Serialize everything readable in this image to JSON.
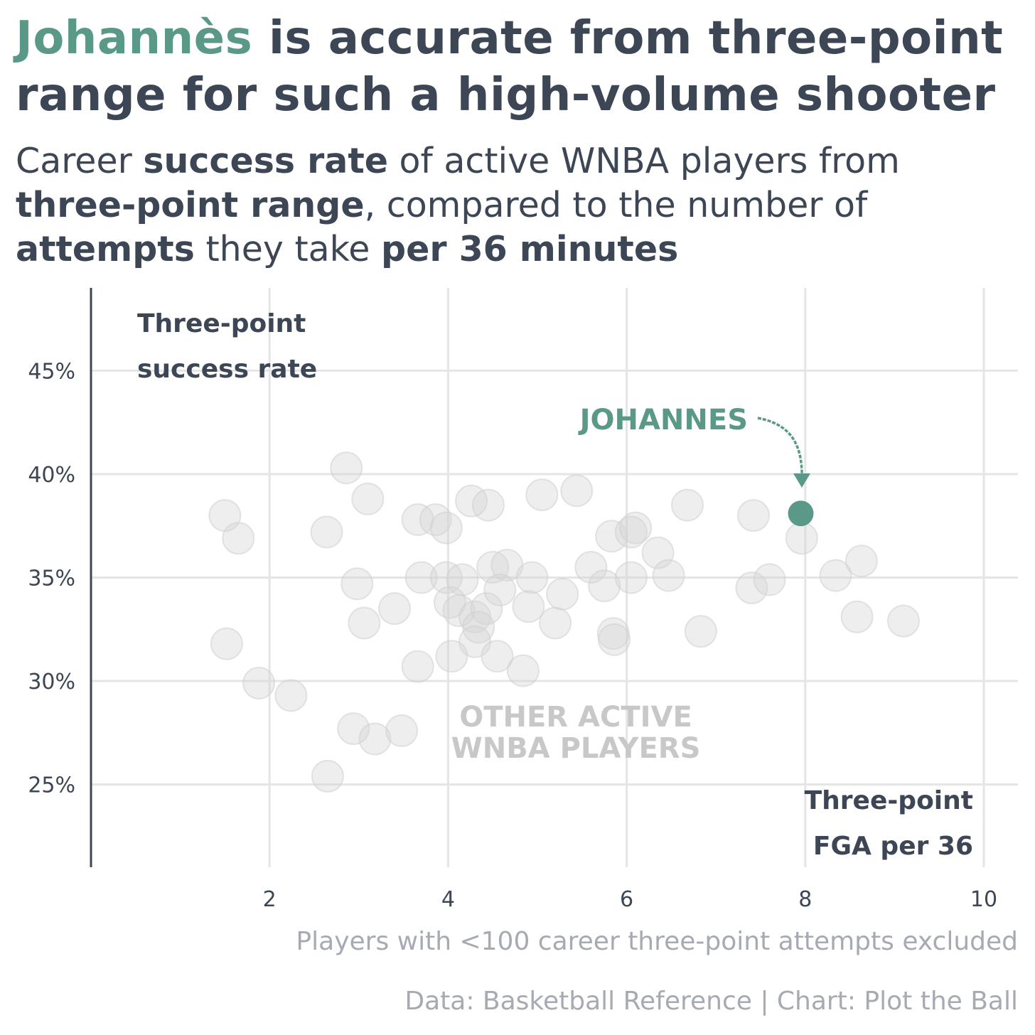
{
  "title": {
    "highlight": "Johannès",
    "rest_line1": " is accurate from three-point",
    "line2": "range for such a high-volume shooter"
  },
  "subtitle": {
    "p1": "Career ",
    "b1": "success rate",
    "p2": " of active WNBA players from ",
    "b2": "three-point range",
    "p3": ", compared to the number of ",
    "b3": "attempts",
    "p4": " they take ",
    "b4": "per 36 minutes"
  },
  "colors": {
    "highlight": "#5a9987",
    "others": "#d4d4d4",
    "text": "#3d4654",
    "grid": "#e5e5e5",
    "note": "#a6aab2"
  },
  "chart_data": {
    "type": "scatter",
    "ylabel_line1": "Three-point",
    "ylabel_line2": "success rate",
    "xlabel_line1": "Three-point",
    "xlabel_line2": "FGA per 36",
    "xlim": [
      0,
      10
    ],
    "ylim": [
      21,
      49
    ],
    "x_ticks": [
      2,
      4,
      6,
      8,
      10
    ],
    "x_tick_labels": [
      "2",
      "4",
      "6",
      "8",
      "10"
    ],
    "y_ticks": [
      25,
      30,
      35,
      40,
      45
    ],
    "y_tick_labels": [
      "25%",
      "30%",
      "35%",
      "40%",
      "45%"
    ],
    "grid": true,
    "others_label_line1": "OTHER ACTIVE",
    "others_label_line2": "WNBA PLAYERS",
    "highlight_label": "JOHANNES",
    "highlight_point": {
      "x": 7.95,
      "y": 38.1
    },
    "points": [
      [
        1.5,
        38.0
      ],
      [
        1.65,
        36.9
      ],
      [
        1.52,
        31.8
      ],
      [
        1.88,
        29.9
      ],
      [
        2.24,
        29.3
      ],
      [
        2.86,
        40.3
      ],
      [
        3.1,
        38.8
      ],
      [
        2.64,
        37.2
      ],
      [
        2.98,
        34.7
      ],
      [
        3.06,
        32.8
      ],
      [
        3.4,
        33.5
      ],
      [
        2.94,
        27.7
      ],
      [
        3.18,
        27.2
      ],
      [
        3.48,
        27.6
      ],
      [
        2.65,
        25.4
      ],
      [
        3.66,
        37.8
      ],
      [
        3.86,
        37.8
      ],
      [
        3.98,
        37.4
      ],
      [
        3.7,
        35.0
      ],
      [
        3.98,
        35.0
      ],
      [
        4.16,
        34.9
      ],
      [
        4.02,
        33.8
      ],
      [
        4.12,
        33.4
      ],
      [
        4.3,
        33.1
      ],
      [
        4.43,
        33.5
      ],
      [
        4.34,
        32.6
      ],
      [
        4.3,
        31.9
      ],
      [
        4.04,
        31.2
      ],
      [
        3.66,
        30.7
      ],
      [
        4.55,
        31.2
      ],
      [
        4.84,
        30.5
      ],
      [
        4.26,
        38.7
      ],
      [
        4.45,
        38.5
      ],
      [
        4.5,
        35.5
      ],
      [
        4.66,
        35.6
      ],
      [
        4.58,
        34.4
      ],
      [
        4.94,
        35.0
      ],
      [
        4.9,
        33.6
      ],
      [
        5.2,
        32.8
      ],
      [
        5.28,
        34.2
      ],
      [
        5.05,
        39.0
      ],
      [
        5.44,
        39.2
      ],
      [
        5.6,
        35.5
      ],
      [
        5.75,
        34.6
      ],
      [
        5.83,
        37.0
      ],
      [
        6.05,
        37.2
      ],
      [
        6.1,
        37.4
      ],
      [
        6.05,
        35.0
      ],
      [
        6.35,
        36.2
      ],
      [
        6.47,
        35.1
      ],
      [
        6.68,
        38.5
      ],
      [
        6.83,
        32.4
      ],
      [
        5.85,
        32.3
      ],
      [
        5.86,
        32.0
      ],
      [
        7.42,
        38.0
      ],
      [
        7.4,
        34.5
      ],
      [
        7.6,
        34.9
      ],
      [
        7.96,
        36.9
      ],
      [
        8.34,
        35.1
      ],
      [
        8.63,
        35.8
      ],
      [
        8.58,
        33.1
      ],
      [
        9.1,
        32.9
      ]
    ]
  },
  "notes": {
    "exclusion": "Players with <100 career three-point attempts excluded",
    "credit": "Data: Basketball Reference | Chart: Plot the Ball"
  }
}
